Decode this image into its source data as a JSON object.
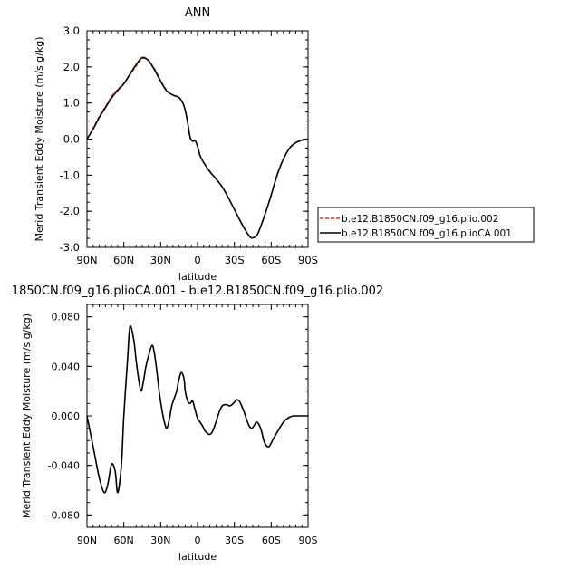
{
  "chart_data": [
    {
      "type": "line",
      "title": "ANN",
      "xlabel": "latitude",
      "ylabel": "Merid Transient Eddy Moisture (m/s g/kg)",
      "xlim": [
        90,
        -90
      ],
      "ylim": [
        -3.0,
        3.0
      ],
      "x_ticks": [
        90,
        60,
        30,
        0,
        -30,
        -60,
        -90
      ],
      "x_tick_labels": [
        "90N",
        "60N",
        "30N",
        "0",
        "30S",
        "60S",
        "90S"
      ],
      "y_ticks": [
        3.0,
        2.0,
        1.0,
        0.0,
        -1.0,
        -2.0,
        -3.0
      ],
      "y_tick_labels": [
        "3.0",
        "2.0",
        "1.0",
        "0.0",
        "-1.0",
        "-2.0",
        "-3.0"
      ],
      "legend_placement": "right",
      "series": [
        {
          "name": "b.e12.B1850CN.f09_g16.plio.002",
          "color": "#e0302a",
          "dashed": true,
          "x": [
            90,
            85,
            80,
            75,
            70,
            65,
            60,
            55,
            50,
            45,
            40,
            37,
            35,
            30,
            25,
            20,
            15,
            12,
            10,
            8,
            6,
            4,
            2,
            0,
            -2,
            -5,
            -10,
            -15,
            -20,
            -25,
            -30,
            -35,
            -40,
            -43,
            -45,
            -48,
            -50,
            -55,
            -60,
            -65,
            -70,
            -75,
            -80,
            -85,
            -90
          ],
          "y": [
            0.0,
            0.3,
            0.63,
            0.9,
            1.18,
            1.38,
            1.55,
            1.78,
            2.02,
            2.23,
            2.18,
            2.05,
            1.95,
            1.62,
            1.35,
            1.22,
            1.15,
            1.0,
            0.8,
            0.45,
            0.05,
            -0.06,
            -0.04,
            -0.2,
            -0.45,
            -0.65,
            -0.9,
            -1.1,
            -1.32,
            -1.62,
            -1.95,
            -2.28,
            -2.58,
            -2.72,
            -2.74,
            -2.68,
            -2.55,
            -2.08,
            -1.55,
            -0.98,
            -0.55,
            -0.25,
            -0.1,
            -0.03,
            0.0
          ]
        },
        {
          "name": "b.e12.B1850CN.f09_g16.plioCA.001",
          "color": "#000000",
          "dashed": false,
          "x": [
            90,
            85,
            80,
            75,
            70,
            65,
            60,
            55,
            50,
            45,
            40,
            37,
            35,
            30,
            25,
            20,
            15,
            12,
            10,
            8,
            6,
            4,
            2,
            0,
            -2,
            -5,
            -10,
            -15,
            -20,
            -25,
            -30,
            -35,
            -40,
            -43,
            -45,
            -48,
            -50,
            -55,
            -60,
            -65,
            -70,
            -75,
            -80,
            -85,
            -90
          ],
          "y": [
            0.0,
            0.28,
            0.6,
            0.87,
            1.14,
            1.35,
            1.53,
            1.8,
            2.06,
            2.26,
            2.18,
            2.03,
            1.92,
            1.6,
            1.33,
            1.22,
            1.15,
            1.0,
            0.8,
            0.45,
            0.05,
            -0.06,
            -0.04,
            -0.2,
            -0.45,
            -0.65,
            -0.9,
            -1.1,
            -1.32,
            -1.62,
            -1.95,
            -2.28,
            -2.58,
            -2.72,
            -2.74,
            -2.68,
            -2.55,
            -2.08,
            -1.55,
            -0.98,
            -0.55,
            -0.25,
            -0.1,
            -0.03,
            0.0
          ]
        }
      ]
    },
    {
      "type": "line",
      "title": "1850CN.f09_g16.plioCA.001 - b.e12.B1850CN.f09_g16.plio.002",
      "xlabel": "latitude",
      "ylabel": "Merid Transient Eddy Moisture (m/s g/kg)",
      "xlim": [
        90,
        -90
      ],
      "ylim": [
        -0.09,
        0.09
      ],
      "x_ticks": [
        90,
        60,
        30,
        0,
        -30,
        -60,
        -90
      ],
      "x_tick_labels": [
        "90N",
        "60N",
        "30N",
        "0",
        "30S",
        "60S",
        "90S"
      ],
      "y_ticks": [
        0.08,
        0.04,
        0.0,
        -0.04,
        -0.08
      ],
      "y_tick_labels": [
        "0.080",
        "0.040",
        "0.000",
        "-0.040",
        "-0.080"
      ],
      "series": [
        {
          "color": "#000000",
          "x": [
            90,
            87,
            84,
            80,
            76,
            73,
            70,
            67,
            65,
            62,
            60,
            57,
            55,
            52,
            50,
            48,
            46,
            44,
            42,
            40,
            37,
            35,
            33,
            31,
            29,
            27,
            25,
            23,
            21,
            19,
            17,
            15,
            13,
            11,
            10,
            8,
            6,
            4,
            2,
            0,
            -2,
            -4,
            -6,
            -8,
            -10,
            -12,
            -14,
            -16,
            -18,
            -20,
            -22,
            -24,
            -26,
            -28,
            -30,
            -32,
            -34,
            -36,
            -38,
            -40,
            -42,
            -44,
            -46,
            -48,
            -50,
            -52,
            -54,
            -56,
            -58,
            -60,
            -62,
            -65,
            -68,
            -70,
            -72,
            -75,
            -78,
            -80,
            -84,
            -87,
            -90
          ],
          "y": [
            0.0,
            -0.015,
            -0.03,
            -0.05,
            -0.062,
            -0.055,
            -0.039,
            -0.045,
            -0.062,
            -0.04,
            0.0,
            0.045,
            0.072,
            0.062,
            0.045,
            0.03,
            0.02,
            0.028,
            0.04,
            0.048,
            0.057,
            0.05,
            0.035,
            0.018,
            0.005,
            -0.005,
            -0.01,
            -0.003,
            0.008,
            0.014,
            0.02,
            0.03,
            0.035,
            0.03,
            0.02,
            0.012,
            0.01,
            0.012,
            0.005,
            -0.002,
            -0.005,
            -0.008,
            -0.012,
            -0.014,
            -0.015,
            -0.013,
            -0.008,
            -0.002,
            0.004,
            0.008,
            0.009,
            0.009,
            0.008,
            0.009,
            0.011,
            0.013,
            0.012,
            0.008,
            0.003,
            -0.003,
            -0.008,
            -0.01,
            -0.008,
            -0.005,
            -0.007,
            -0.012,
            -0.02,
            -0.024,
            -0.025,
            -0.022,
            -0.018,
            -0.013,
            -0.008,
            -0.005,
            -0.003,
            -0.001,
            0.0,
            0.0,
            0.0,
            0.0,
            0.0
          ]
        }
      ]
    }
  ]
}
